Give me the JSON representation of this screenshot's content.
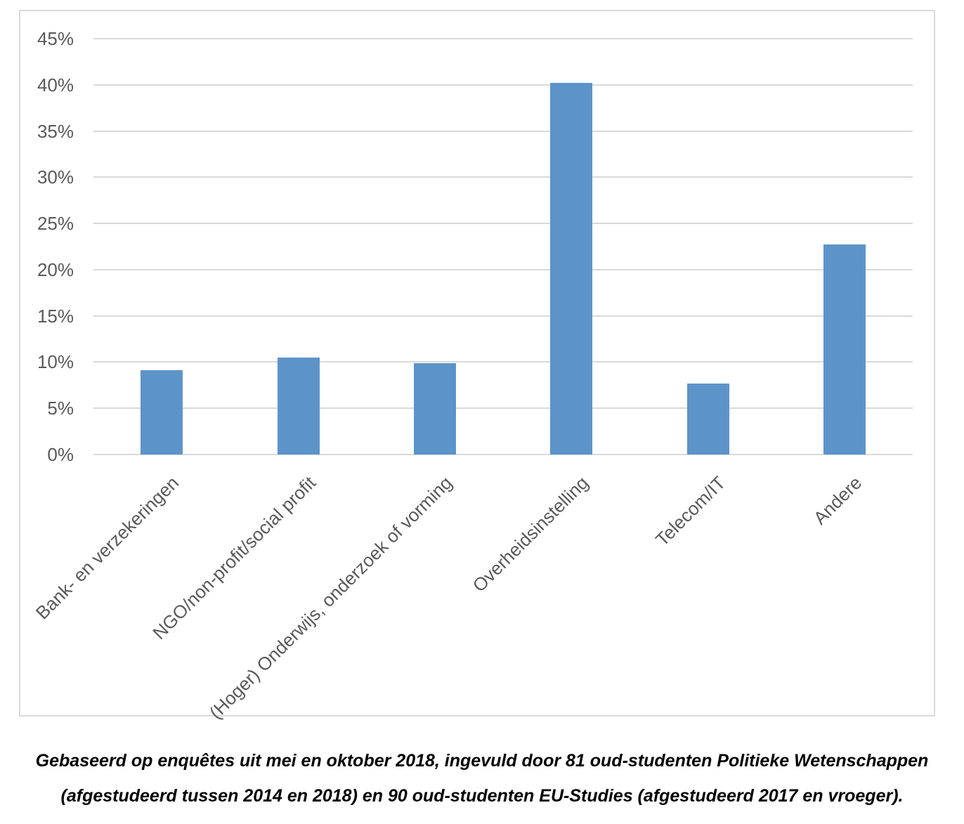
{
  "chart_data": {
    "type": "bar",
    "title": "",
    "xlabel": "",
    "ylabel": "",
    "categories": [
      "Bank- en verzekeringen",
      "NGO/non-profit/social profit",
      "(Hoger) Onderwijs, onderzoek of vorming",
      "Overheidsinstelling",
      "Telecom/IT",
      "Andere"
    ],
    "values": [
      9.1,
      10.5,
      9.9,
      40.2,
      7.7,
      22.7
    ],
    "unit": "%",
    "ylim": [
      0,
      45
    ],
    "ytick_step": 5,
    "ytick_labels": [
      "0%",
      "5%",
      "10%",
      "15%",
      "20%",
      "25%",
      "30%",
      "35%",
      "40%",
      "45%"
    ],
    "grid": true,
    "legend": "none",
    "bar_color": "#5C94CA",
    "gridline_color": "#D9D9D9",
    "frame_color": "#D9D9D9",
    "tick_label_color": "#595959"
  },
  "caption": {
    "line1": "Gebaseerd op enquêtes uit mei en oktober 2018, ingevuld door 81 oud-studenten Politieke Wetenschappen",
    "line2": "(afgestudeerd tussen 2014 en 2018) en 90 oud-studenten EU-Studies (afgestudeerd 2017 en vroeger)."
  }
}
